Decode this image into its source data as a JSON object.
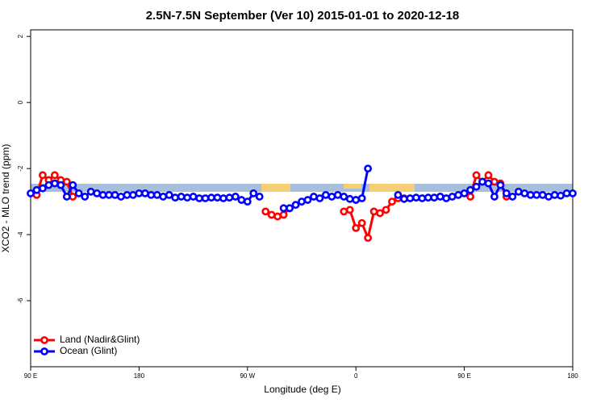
{
  "chart_data": {
    "type": "line",
    "title": "2.5N-7.5N September (Ver 10)   2015-01-01 to 2020-12-18",
    "x_label": "Longitude (deg E)",
    "y_label": "XCO2 - MLO trend (ppm)",
    "xlim": [
      90,
      540
    ],
    "ylim": [
      -8,
      2.2
    ],
    "xticks": [
      {
        "value": 90,
        "label": "90 E"
      },
      180,
      {
        "value": 270,
        "label": "90 W"
      },
      {
        "value": 360,
        "label": "0"
      },
      {
        "value": 450,
        "label": "90 E"
      },
      {
        "value": 540,
        "label": "180"
      }
    ],
    "yticks": [
      2,
      0,
      -2,
      -4,
      -6
    ],
    "legend": "bottom-left",
    "x": [
      90,
      95,
      100,
      105,
      110,
      115,
      120,
      125,
      130,
      135,
      140,
      145,
      150,
      155,
      160,
      165,
      170,
      175,
      180,
      185,
      190,
      195,
      200,
      205,
      210,
      215,
      220,
      225,
      230,
      235,
      240,
      245,
      250,
      255,
      260,
      265,
      270,
      275,
      280,
      285,
      290,
      295,
      300,
      305,
      310,
      315,
      320,
      325,
      330,
      335,
      340,
      345,
      350,
      355,
      360,
      365,
      370,
      375,
      380,
      385,
      390,
      395,
      400,
      405,
      410,
      415,
      420,
      425,
      430,
      435,
      440,
      445,
      450,
      455,
      460,
      465,
      470,
      475,
      480,
      485,
      490,
      495,
      500,
      505,
      510,
      515,
      520,
      525,
      530,
      535,
      540
    ],
    "series": [
      {
        "name": "Land (Nadir&Glint)",
        "color": "#ff0000",
        "values": [
          null,
          -2.8,
          -2.2,
          -2.35,
          -2.2,
          -2.35,
          -2.4,
          -2.85,
          null,
          null,
          null,
          null,
          null,
          null,
          null,
          null,
          null,
          null,
          null,
          null,
          null,
          null,
          null,
          null,
          null,
          null,
          null,
          null,
          null,
          null,
          null,
          null,
          null,
          null,
          null,
          null,
          null,
          null,
          null,
          -3.3,
          -3.4,
          -3.45,
          -3.4,
          -3.2,
          null,
          null,
          null,
          null,
          null,
          null,
          null,
          null,
          -3.3,
          -3.25,
          -3.8,
          -3.65,
          -4.1,
          -3.3,
          -3.35,
          -3.25,
          -3.0,
          -2.9,
          -2.9,
          null,
          null,
          null,
          null,
          null,
          null,
          null,
          null,
          null,
          null,
          -2.85,
          -2.2,
          -2.4,
          -2.2,
          -2.4,
          -2.45,
          -2.85,
          null,
          null,
          null,
          null,
          null,
          null,
          null,
          null,
          null,
          null,
          null
        ]
      },
      {
        "name": "Ocean (Glint)",
        "color": "#0000ff",
        "values": [
          -2.75,
          -2.65,
          -2.6,
          -2.5,
          -2.45,
          -2.5,
          -2.85,
          -2.5,
          -2.75,
          -2.85,
          -2.7,
          -2.75,
          -2.8,
          -2.8,
          -2.8,
          -2.85,
          -2.8,
          -2.8,
          -2.75,
          -2.75,
          -2.8,
          -2.8,
          -2.85,
          -2.8,
          -2.88,
          -2.85,
          -2.88,
          -2.85,
          -2.9,
          -2.9,
          -2.88,
          -2.88,
          -2.9,
          -2.88,
          -2.85,
          -2.95,
          -3.0,
          -2.75,
          -2.85,
          null,
          null,
          null,
          -3.2,
          -3.2,
          -3.1,
          -3.0,
          -2.95,
          -2.85,
          -2.9,
          -2.8,
          -2.85,
          -2.8,
          -2.85,
          -2.92,
          -2.95,
          -2.9,
          -2.0,
          null,
          null,
          null,
          null,
          -2.8,
          -2.92,
          -2.9,
          -2.88,
          -2.9,
          -2.88,
          -2.88,
          -2.85,
          -2.9,
          -2.85,
          -2.8,
          -2.75,
          -2.65,
          -2.55,
          -2.4,
          -2.45,
          -2.85,
          -2.5,
          -2.75,
          -2.85,
          -2.7,
          -2.75,
          -2.8,
          -2.8,
          -2.8,
          -2.85,
          -2.8,
          -2.82,
          -2.75,
          -2.75
        ]
      }
    ]
  }
}
